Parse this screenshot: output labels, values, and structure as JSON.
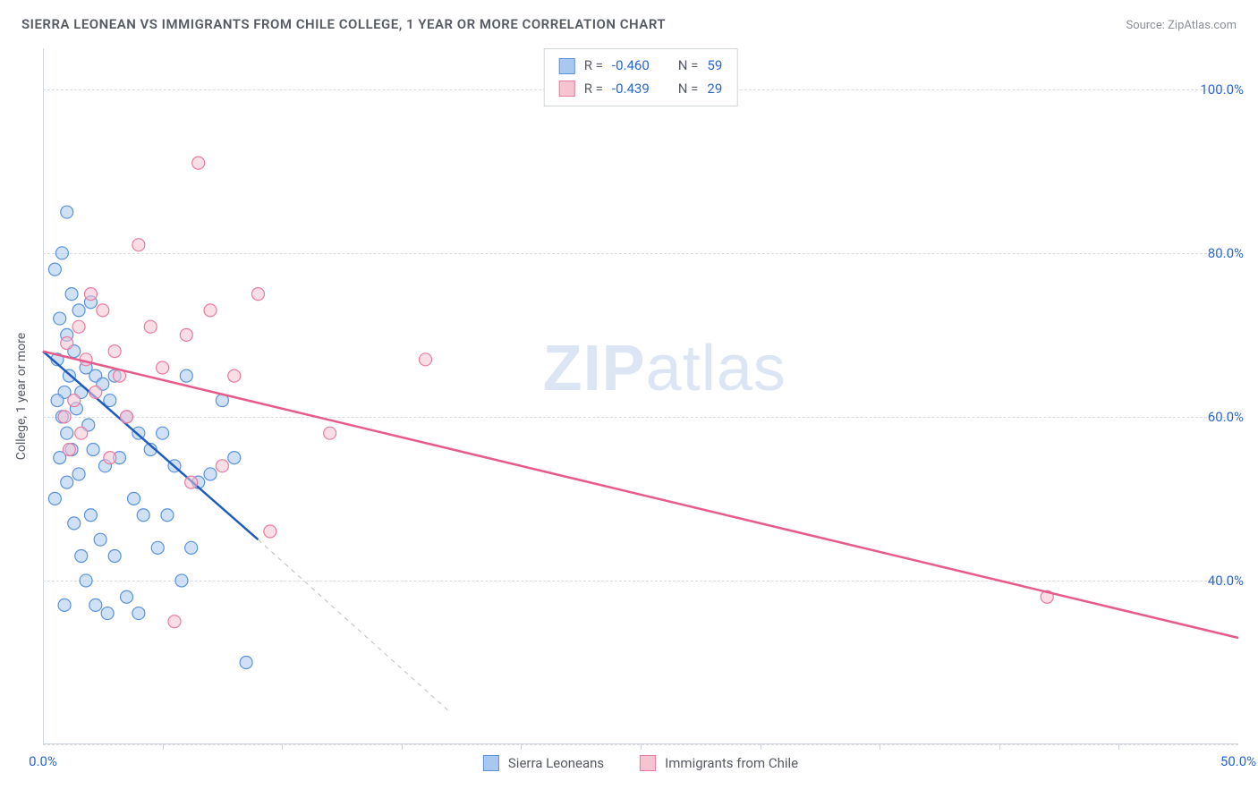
{
  "header": {
    "title": "SIERRA LEONEAN VS IMMIGRANTS FROM CHILE COLLEGE, 1 YEAR OR MORE CORRELATION CHART",
    "source": "Source: ZipAtlas.com"
  },
  "watermark": {
    "zip": "ZIP",
    "atlas": "atlas"
  },
  "chart": {
    "type": "scatter-with-regression",
    "ylabel": "College, 1 year or more",
    "background_color": "#ffffff",
    "grid_color": "#d8dbe0",
    "axis_color": "#cfd3da",
    "tick_font_color": "#2b67d1",
    "label_font_color": "#555a63",
    "tick_fontsize": 15,
    "label_fontsize": 14,
    "title_fontsize": 15,
    "xlim": [
      0,
      50
    ],
    "ylim": [
      20,
      105
    ],
    "xticks": [
      {
        "val": 0,
        "label": "0.0%"
      },
      {
        "val": 50,
        "label": "50.0%"
      }
    ],
    "xtick_marks": [
      5,
      10,
      15,
      20,
      25,
      30,
      35,
      40,
      45
    ],
    "yticks": [
      {
        "val": 40,
        "label": "40.0%"
      },
      {
        "val": 60,
        "label": "60.0%"
      },
      {
        "val": 80,
        "label": "80.0%"
      },
      {
        "val": 100,
        "label": "100.0%"
      }
    ],
    "ygrid": [
      20,
      40,
      60,
      80,
      100
    ],
    "marker_radius": 7,
    "marker_opacity": 0.55,
    "line_width_main": 2.5,
    "line_width_dash": 1,
    "series": [
      {
        "key": "sierra",
        "name": "Sierra Leoneans",
        "fill": "#a9c8ef",
        "stroke": "#5a93db",
        "line_color": "#1e5cc0",
        "R": "-0.460",
        "N": "59",
        "points": [
          [
            0.5,
            78
          ],
          [
            1.0,
            85
          ],
          [
            0.8,
            80
          ],
          [
            1.2,
            75
          ],
          [
            1.5,
            73
          ],
          [
            1.0,
            70
          ],
          [
            0.7,
            72
          ],
          [
            2.0,
            74
          ],
          [
            1.3,
            68
          ],
          [
            1.8,
            66
          ],
          [
            0.6,
            67
          ],
          [
            1.1,
            65
          ],
          [
            2.2,
            65
          ],
          [
            0.9,
            63
          ],
          [
            1.6,
            63
          ],
          [
            2.5,
            64
          ],
          [
            1.4,
            61
          ],
          [
            0.8,
            60
          ],
          [
            1.9,
            59
          ],
          [
            3.0,
            65
          ],
          [
            2.8,
            62
          ],
          [
            3.5,
            60
          ],
          [
            4.0,
            58
          ],
          [
            2.1,
            56
          ],
          [
            1.2,
            56
          ],
          [
            0.7,
            55
          ],
          [
            1.5,
            53
          ],
          [
            2.6,
            54
          ],
          [
            3.2,
            55
          ],
          [
            4.5,
            56
          ],
          [
            5.0,
            58
          ],
          [
            5.5,
            54
          ],
          [
            6.0,
            65
          ],
          [
            7.0,
            53
          ],
          [
            8.0,
            55
          ],
          [
            2.0,
            48
          ],
          [
            1.0,
            52
          ],
          [
            3.8,
            50
          ],
          [
            4.2,
            48
          ],
          [
            2.4,
            45
          ],
          [
            1.6,
            43
          ],
          [
            3.0,
            43
          ],
          [
            5.2,
            48
          ],
          [
            6.5,
            52
          ],
          [
            7.5,
            62
          ],
          [
            0.5,
            50
          ],
          [
            1.3,
            47
          ],
          [
            4.8,
            44
          ],
          [
            0.9,
            37
          ],
          [
            2.2,
            37
          ],
          [
            3.5,
            38
          ],
          [
            5.8,
            40
          ],
          [
            8.5,
            30
          ],
          [
            1.8,
            40
          ],
          [
            2.7,
            36
          ],
          [
            4.0,
            36
          ],
          [
            6.2,
            44
          ],
          [
            1.0,
            58
          ],
          [
            0.6,
            62
          ]
        ],
        "reg_solid": {
          "x1": 0,
          "y1": 68,
          "x2": 9,
          "y2": 45
        },
        "reg_dash": {
          "x1": 9,
          "y1": 45,
          "x2": 17,
          "y2": 24
        }
      },
      {
        "key": "chile",
        "name": "Immigrants from Chile",
        "fill": "#f6c3d1",
        "stroke": "#e97ba0",
        "line_color": "#e85a8a",
        "R": "-0.439",
        "N": "29",
        "points": [
          [
            6.5,
            91
          ],
          [
            4.0,
            81
          ],
          [
            2.0,
            75
          ],
          [
            2.5,
            73
          ],
          [
            1.5,
            71
          ],
          [
            1.0,
            69
          ],
          [
            1.8,
            67
          ],
          [
            3.0,
            68
          ],
          [
            4.5,
            71
          ],
          [
            7.0,
            73
          ],
          [
            9.0,
            75
          ],
          [
            6.0,
            70
          ],
          [
            5.0,
            66
          ],
          [
            2.2,
            63
          ],
          [
            1.3,
            62
          ],
          [
            0.9,
            60
          ],
          [
            1.6,
            58
          ],
          [
            3.5,
            60
          ],
          [
            8.0,
            65
          ],
          [
            12.0,
            58
          ],
          [
            16.0,
            67
          ],
          [
            7.5,
            54
          ],
          [
            6.2,
            52
          ],
          [
            9.5,
            46
          ],
          [
            5.5,
            35
          ],
          [
            2.8,
            55
          ],
          [
            1.1,
            56
          ],
          [
            42.0,
            38
          ],
          [
            3.2,
            65
          ]
        ],
        "reg_solid": {
          "x1": 0,
          "y1": 68,
          "x2": 50,
          "y2": 33
        },
        "reg_dash": null
      }
    ],
    "legend_top_labels": {
      "R": "R =",
      "N": "N ="
    },
    "legend_bottom_order": [
      "sierra",
      "chile"
    ]
  }
}
